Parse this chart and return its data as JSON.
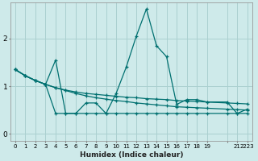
{
  "background_color": "#ceeaea",
  "grid_color": "#aad0d0",
  "line_color": "#007070",
  "xlabel": "Humidex (Indice chaleur)",
  "xlim": [
    -0.5,
    23.5
  ],
  "ylim": [
    -0.15,
    2.75
  ],
  "yticks": [
    0,
    1,
    2
  ],
  "xtick_positions": [
    0,
    1,
    2,
    3,
    4,
    5,
    6,
    7,
    8,
    9,
    10,
    11,
    12,
    13,
    14,
    15,
    16,
    17,
    18,
    19,
    21,
    22,
    23
  ],
  "xtick_labels": [
    "0",
    "1",
    "2",
    "3",
    "4",
    "5",
    "6",
    "7",
    "8",
    "9",
    "10",
    "11",
    "12",
    "13",
    "14",
    "15",
    "16",
    "17",
    "18",
    "19",
    "",
    "21",
    "2223"
  ],
  "lines": [
    {
      "x": [
        0,
        1,
        2,
        3,
        4,
        5,
        6,
        7,
        8,
        9,
        10,
        11,
        12,
        13,
        14,
        15,
        16,
        17,
        18,
        19,
        21,
        22,
        23
      ],
      "y": [
        1.35,
        1.22,
        1.12,
        1.04,
        0.97,
        0.91,
        0.85,
        0.8,
        0.76,
        0.73,
        0.7,
        0.68,
        0.65,
        0.63,
        0.61,
        0.59,
        0.57,
        0.56,
        0.55,
        0.54,
        0.52,
        0.51,
        0.5
      ]
    },
    {
      "x": [
        0,
        1,
        2,
        3,
        4,
        5,
        6,
        7,
        8,
        9,
        10,
        11,
        12,
        13,
        14,
        15,
        16,
        17,
        18,
        19,
        21,
        22,
        23
      ],
      "y": [
        1.35,
        1.22,
        1.12,
        1.04,
        0.97,
        0.92,
        0.88,
        0.85,
        0.83,
        0.81,
        0.79,
        0.77,
        0.76,
        0.74,
        0.73,
        0.72,
        0.7,
        0.69,
        0.68,
        0.67,
        0.65,
        0.64,
        0.63
      ]
    },
    {
      "x": [
        0,
        1,
        2,
        3,
        4,
        5,
        6,
        7,
        8,
        9,
        10,
        11,
        12,
        13,
        14,
        15,
        16,
        17,
        18,
        19,
        21,
        22,
        23
      ],
      "y": [
        1.35,
        1.22,
        1.12,
        1.04,
        1.55,
        0.43,
        0.43,
        0.65,
        0.65,
        0.43,
        0.85,
        1.4,
        2.05,
        2.62,
        1.85,
        1.62,
        0.62,
        0.72,
        0.72,
        0.67,
        0.67,
        0.43,
        0.52
      ]
    },
    {
      "x": [
        0,
        1,
        2,
        3,
        4,
        5,
        6,
        7,
        8,
        9,
        10,
        11,
        12,
        13,
        14,
        15,
        16,
        17,
        18,
        19,
        21,
        22,
        23
      ],
      "y": [
        1.35,
        1.22,
        1.12,
        1.04,
        0.43,
        0.43,
        0.43,
        0.43,
        0.43,
        0.43,
        0.43,
        0.43,
        0.43,
        0.43,
        0.43,
        0.43,
        0.43,
        0.43,
        0.43,
        0.43,
        0.43,
        0.43,
        0.43
      ]
    }
  ]
}
